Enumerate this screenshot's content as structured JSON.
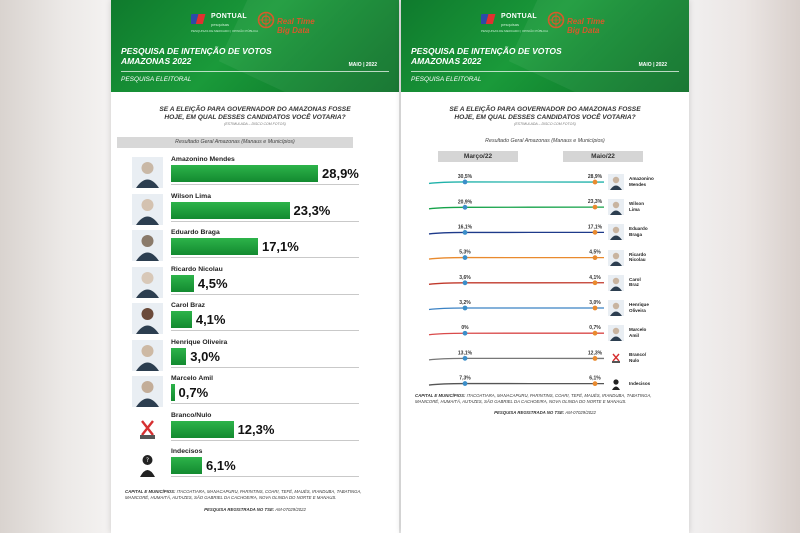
{
  "header": {
    "brand": "PONTUAL",
    "brand_sub": "pesquisas",
    "brand_tag": "PESQUISAS DE MERCADO | OPINIÃO PÚBLICA",
    "partner": "Real Time Big Data",
    "title_line1": "PESQUISA DE INTENÇÃO DE VOTOS",
    "title_line2": "AMAZONAS 2022",
    "date": "MAIO | 2022",
    "subtitle": "PESQUISA ELEITORAL"
  },
  "question": {
    "line1": "SE A ELEIÇÃO PARA GOVERNADOR DO AMAZONAS FOSSE",
    "line2": "HOJE, EM QUAL DESSES CANDIDATOS VOCÊ VOTARIA?",
    "note": "(ESTIMULADA – DISCO COM FOTOS)"
  },
  "result_label": "Resultado Geral Amazonas (Manaus e Municípios)",
  "footer": {
    "cities_label": "CAPITAL E MUNICÍPIOS:",
    "cities": "ITACOATIARA, MANACAPURU, PARINTINS, COARI, TEFÉ, MAUÉS, IRANDUBA, TABATINGA, MANICORÉ, HUMAITÁ, AUTAZES, SÃO GABRIEL DA CACHOEIRA, NOVA OLINDA DO NORTE E MANAUS.",
    "reg_label": "PESQUISA REGISTRADA NO TSE:",
    "reg_value": "AM-07029/2022"
  },
  "colors": {
    "green_dark": "#0f7a2d",
    "bar_green": "#1e9e3b",
    "orange": "#e98a2e",
    "teal": "#20b2aa"
  },
  "chart_data": [
    {
      "type": "bar",
      "title": "Resultado Geral Amazonas (Manaus e Municípios)",
      "categories": [
        "Amazonino Mendes",
        "Wilson Lima",
        "Eduardo Braga",
        "Ricardo Nicolau",
        "Carol Braz",
        "Henrique Oliveira",
        "Marcelo Amil",
        "Branco/Nulo",
        "Indecisos"
      ],
      "value_labels": [
        "28,9%",
        "23,3%",
        "17,1%",
        "4,5%",
        "4,1%",
        "3,0%",
        "0,7%",
        "12,3%",
        "6,1%"
      ],
      "values": [
        28.9,
        23.3,
        17.1,
        4.5,
        4.1,
        3.0,
        0.7,
        12.3,
        6.1
      ],
      "ylim": [
        0,
        40
      ]
    },
    {
      "type": "line",
      "title": "Resultado Geral Amazonas (Manaus e Municípios)",
      "x": [
        "Março/22",
        "Maio/22"
      ],
      "series": [
        {
          "name": "Amazonino Mendes",
          "label": [
            "Amazonino",
            "Mendes"
          ],
          "values": [
            30.5,
            28.9
          ],
          "value_labels": [
            "30,5%",
            "28,9%"
          ],
          "color": "#20b2aa"
        },
        {
          "name": "Wilson Lima",
          "label": [
            "Wilson",
            "Lima"
          ],
          "values": [
            20.9,
            23.3
          ],
          "value_labels": [
            "20,9%",
            "23,3%"
          ],
          "color": "#16a34a"
        },
        {
          "name": "Eduardo Braga",
          "label": [
            "Eduardo",
            "Braga"
          ],
          "values": [
            16.1,
            17.1
          ],
          "value_labels": [
            "16,1%",
            "17,1%"
          ],
          "color": "#1e3a8a"
        },
        {
          "name": "Ricardo Nicolau",
          "label": [
            "Ricardo",
            "Nicolau"
          ],
          "values": [
            5.3,
            4.5
          ],
          "value_labels": [
            "5,3%",
            "4,5%"
          ],
          "color": "#e98a2e"
        },
        {
          "name": "Carol Braz",
          "label": [
            "Carol",
            "Braz"
          ],
          "values": [
            3.6,
            4.1
          ],
          "value_labels": [
            "3,6%",
            "4,1%"
          ],
          "color": "#c0392b"
        },
        {
          "name": "Henrique Oliveira",
          "label": [
            "Henrique",
            "Oliveira"
          ],
          "values": [
            3.2,
            3.0
          ],
          "value_labels": [
            "3,2%",
            "3,0%"
          ],
          "color": "#3b82c4"
        },
        {
          "name": "Marcelo Amil",
          "label": [
            "Marcelo",
            "Amil"
          ],
          "values": [
            0,
            0.7
          ],
          "value_labels": [
            "0%",
            "0,7%"
          ],
          "color": "#d94a4a"
        },
        {
          "name": "Branco/Nulo",
          "label": [
            "Branco/",
            "Nulo"
          ],
          "values": [
            13.1,
            12.3
          ],
          "value_labels": [
            "13,1%",
            "12,3%"
          ],
          "color": "#777777"
        },
        {
          "name": "Indecisos",
          "label": [
            "Indecisos"
          ],
          "values": [
            7.3,
            6.1
          ],
          "value_labels": [
            "7,3%",
            "6,1%"
          ],
          "color": "#555555"
        }
      ]
    }
  ]
}
